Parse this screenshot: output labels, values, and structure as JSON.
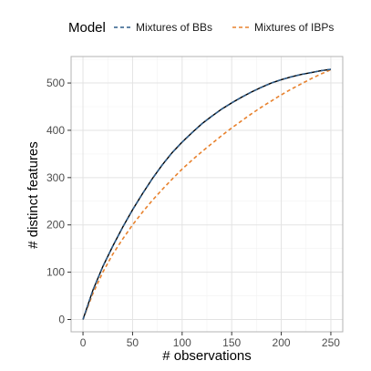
{
  "chart_data": {
    "type": "line",
    "xlabel": "# observations",
    "ylabel": "# distinct features",
    "xlim": [
      -12,
      262
    ],
    "ylim": [
      -26,
      556
    ],
    "x_ticks": [
      0,
      50,
      100,
      150,
      200,
      250
    ],
    "y_ticks": [
      0,
      100,
      200,
      300,
      400,
      500
    ],
    "grid": true,
    "legend": {
      "title": "Model",
      "position": "top",
      "entries": [
        "Mixtures of BBs",
        "Mixtures of IBPs"
      ]
    },
    "x": [
      0,
      10,
      20,
      30,
      40,
      50,
      60,
      70,
      80,
      90,
      100,
      110,
      120,
      130,
      140,
      150,
      160,
      170,
      180,
      190,
      200,
      210,
      220,
      230,
      240,
      250
    ],
    "series": [
      {
        "name": "Mixtures of BBs",
        "color": "#2F5D8A",
        "values": [
          0,
          62,
          112,
          155,
          195,
          232,
          266,
          298,
          327,
          353,
          375,
          395,
          414,
          430,
          445,
          458,
          470,
          481,
          491,
          500,
          507,
          513,
          518,
          522,
          526,
          529
        ]
      },
      {
        "name": "Mixtures of IBPs",
        "color": "#E8822E",
        "values": [
          0,
          55,
          100,
          138,
          170,
          200,
          227,
          252,
          275,
          297,
          318,
          337,
          355,
          372,
          389,
          405,
          420,
          435,
          449,
          462,
          475,
          487,
          498,
          509,
          519,
          528
        ]
      }
    ],
    "observed_color": "#000000"
  }
}
